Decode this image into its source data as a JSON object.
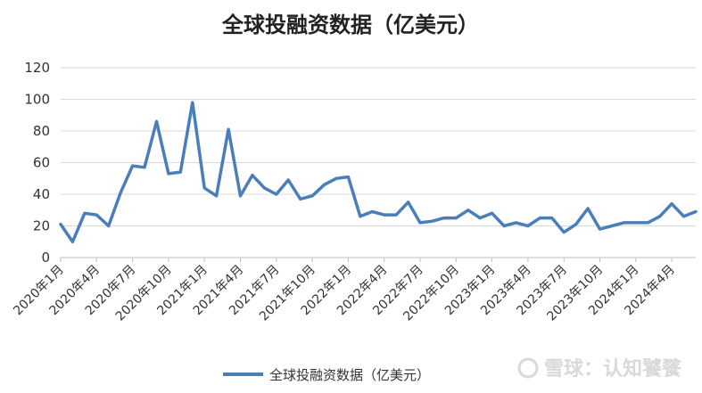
{
  "chart_data": {
    "type": "line",
    "title": "全球投融资数据（亿美元）",
    "xlabel": "",
    "ylabel": "",
    "ylim": [
      0,
      120
    ],
    "yticks": [
      0,
      20,
      40,
      60,
      80,
      100,
      120
    ],
    "grid": true,
    "legend_position": "bottom",
    "x": [
      "2020年1月",
      "2020年2月",
      "2020年3月",
      "2020年4月",
      "2020年5月",
      "2020年6月",
      "2020年7月",
      "2020年8月",
      "2020年9月",
      "2020年10月",
      "2020年11月",
      "2020年12月",
      "2021年1月",
      "2021年2月",
      "2021年3月",
      "2021年4月",
      "2021年5月",
      "2021年6月",
      "2021年7月",
      "2021年8月",
      "2021年9月",
      "2021年10月",
      "2021年11月",
      "2021年12月",
      "2022年1月",
      "2022年2月",
      "2022年3月",
      "2022年4月",
      "2022年5月",
      "2022年6月",
      "2022年7月",
      "2022年8月",
      "2022年9月",
      "2022年10月",
      "2022年11月",
      "2022年12月",
      "2023年1月",
      "2023年2月",
      "2023年3月",
      "2023年4月",
      "2023年5月",
      "2023年6月",
      "2023年7月",
      "2023年8月",
      "2023年9月",
      "2023年10月",
      "2023年11月",
      "2023年12月",
      "2024年1月",
      "2024年2月",
      "2024年3月",
      "2024年4月",
      "2024年5月",
      "2024年6月"
    ],
    "xtick_labels": [
      "2020年1月",
      "2020年4月",
      "2020年7月",
      "2020年10月",
      "2021年1月",
      "2021年4月",
      "2021年7月",
      "2021年10月",
      "2022年1月",
      "2022年4月",
      "2022年7月",
      "2022年10月",
      "2023年1月",
      "2023年4月",
      "2023年7月",
      "2023年10月",
      "2024年1月",
      "2024年4月"
    ],
    "series": [
      {
        "name": "全球投融资数据（亿美元）",
        "color": "#4a7ebb",
        "values": [
          21,
          10,
          28,
          27,
          20,
          41,
          58,
          57,
          86,
          53,
          54,
          98,
          44,
          39,
          81,
          39,
          52,
          44,
          40,
          49,
          37,
          39,
          46,
          50,
          51,
          26,
          29,
          27,
          27,
          35,
          22,
          23,
          25,
          25,
          30,
          25,
          28,
          20,
          22,
          20,
          25,
          25,
          16,
          21,
          31,
          18,
          20,
          22,
          22,
          22,
          26,
          34,
          26,
          29
        ]
      }
    ]
  },
  "watermark": "雪球：认知饕餮"
}
